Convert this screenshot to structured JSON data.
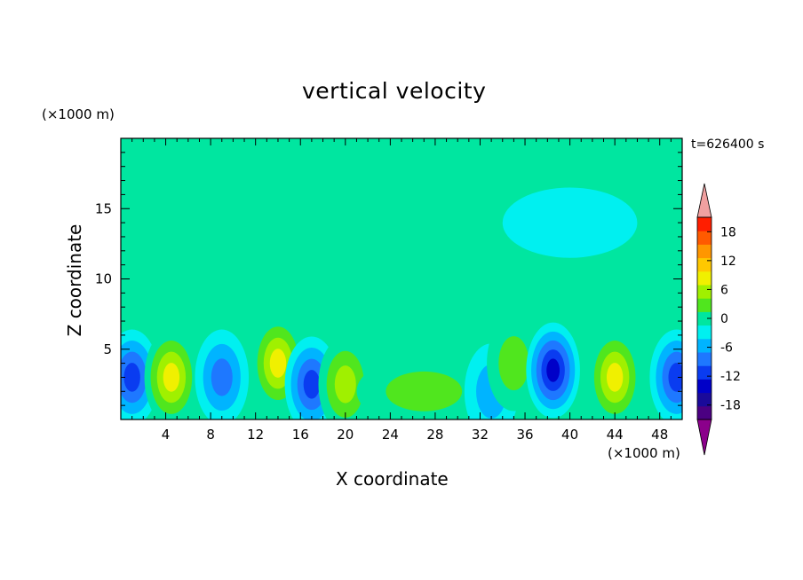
{
  "chart_data": {
    "type": "heatmap",
    "title": "vertical velocity",
    "xlabel": "X coordinate",
    "ylabel": "Z coordinate",
    "x_unit_label": "(×1000 m)",
    "y_unit_label": "(×1000 m)",
    "time_label": "t=626400 s",
    "xlim": [
      0,
      50
    ],
    "ylim": [
      0,
      20
    ],
    "x_ticks": [
      4,
      8,
      12,
      16,
      20,
      24,
      28,
      32,
      36,
      40,
      44,
      48
    ],
    "y_ticks": [
      5,
      10,
      15
    ],
    "colorbar": {
      "levels": [
        -21,
        -18,
        -15,
        -12,
        -9,
        -6,
        -3,
        0,
        3,
        6,
        9,
        12,
        15,
        18,
        21
      ],
      "tick_labels": [
        -18,
        -12,
        -6,
        0,
        6,
        12,
        18
      ],
      "colors": [
        "#4b0082",
        "#1a0a9a",
        "#0000c8",
        "#0a3cf0",
        "#1e78ff",
        "#00b4ff",
        "#00f0f0",
        "#00e6a0",
        "#50e61e",
        "#a0f000",
        "#f0f000",
        "#ffc800",
        "#ff9600",
        "#ff5a00",
        "#ff1e00"
      ],
      "under_color": "#8b008b",
      "over_color": "#f0a0a0"
    },
    "cells": [
      {
        "x": 1,
        "z": 3,
        "value": -10
      },
      {
        "x": 4.5,
        "z": 3,
        "value": 10
      },
      {
        "x": 9,
        "z": 3,
        "value": -8
      },
      {
        "x": 14,
        "z": 4,
        "value": 9
      },
      {
        "x": 17,
        "z": 2.5,
        "value": -11
      },
      {
        "x": 20,
        "z": 2.5,
        "value": 8
      },
      {
        "x": 27,
        "z": 2,
        "value": 3
      },
      {
        "x": 33,
        "z": 2,
        "value": -5
      },
      {
        "x": 35,
        "z": 4,
        "value": 5
      },
      {
        "x": 38.5,
        "z": 3.5,
        "value": -13
      },
      {
        "x": 44,
        "z": 3,
        "value": 9
      },
      {
        "x": 49.5,
        "z": 3,
        "value": -10
      },
      {
        "x": 25,
        "z": 12,
        "value": 1
      },
      {
        "x": 10,
        "z": 10,
        "value": 1
      },
      {
        "x": 40,
        "z": 14,
        "value": -1
      }
    ]
  }
}
